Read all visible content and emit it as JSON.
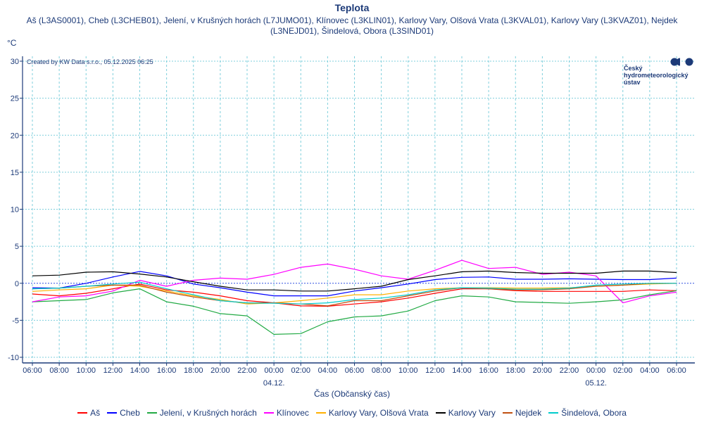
{
  "chart_data": {
    "type": "line",
    "title": "Teplota",
    "subtitle": "Aš (L3AS0001), Cheb (L3CHEB01), Jelení, v Krušných horách (L7JUMO01), Klínovec (L3KLIN01), Karlovy Vary, Olšová Vrata (L3KVAL01), Karlovy Vary (L3KVAZ01), Nejdek (L3NEJD01), Šindelová, Obora (L3SIND01)",
    "ylabel": "°C",
    "xlabel": "Čas (Občanský čas)",
    "credit": "Created by KW Data s.r.o., 05.12.2025 06:25",
    "logo_text": "Český hydrometeorologický ústav",
    "ylim": [
      -10,
      30
    ],
    "yticks": [
      -10,
      -5,
      0,
      5,
      10,
      15,
      20,
      25,
      30
    ],
    "x_hours": [
      0,
      2,
      4,
      6,
      8,
      10,
      12,
      14,
      16,
      18,
      20,
      22,
      24,
      26,
      28,
      30,
      32,
      34,
      36,
      38,
      40,
      42,
      44,
      46,
      48
    ],
    "xtick_labels": [
      "06:00",
      "08:00",
      "10:00",
      "12:00",
      "14:00",
      "16:00",
      "18:00",
      "20:00",
      "22:00",
      "00:00",
      "02:00",
      "04:00",
      "06:00",
      "08:00",
      "10:00",
      "12:00",
      "14:00",
      "16:00",
      "18:00",
      "20:00",
      "22:00",
      "00:00",
      "02:00",
      "04:00",
      "06:00"
    ],
    "date_labels": [
      {
        "hour": 18,
        "label": "04.12."
      },
      {
        "hour": 42,
        "label": "05.12."
      }
    ],
    "grid": true,
    "legend_position": "bottom",
    "series": [
      {
        "name": "Aš",
        "color": "#ff0000",
        "values": [
          -1.45,
          -1.7,
          -1.35,
          -0.75,
          -0.1,
          -0.9,
          -1.2,
          -1.7,
          -2.35,
          -2.65,
          -3.05,
          -3.1,
          -2.8,
          -2.5,
          -2.0,
          -1.35,
          -0.75,
          -0.75,
          -1.0,
          -1.1,
          -1.1,
          -1.1,
          -1.1,
          -0.9,
          -1.0
        ]
      },
      {
        "name": "Cheb",
        "color": "#0000ff",
        "values": [
          -0.6,
          -0.65,
          0,
          0.85,
          1.6,
          1.0,
          -0.1,
          -0.6,
          -1.2,
          -1.7,
          -1.7,
          -1.7,
          -1.05,
          -0.6,
          -0.1,
          0.5,
          0.8,
          0.85,
          0.55,
          0.55,
          0.6,
          0.55,
          0.5,
          0.5,
          0.7
        ]
      },
      {
        "name": "Jelení, v Krušných horách",
        "color": "#22aa44",
        "values": [
          -2.5,
          -2.35,
          -2.2,
          -1.3,
          -0.75,
          -2.5,
          -3.1,
          -4.1,
          -4.4,
          -6.9,
          -6.8,
          -5.2,
          -4.55,
          -4.4,
          -3.75,
          -2.35,
          -1.7,
          -1.85,
          -2.5,
          -2.6,
          -2.7,
          -2.5,
          -2.25,
          -1.55,
          -1.0
        ]
      },
      {
        "name": "Klínovec",
        "color": "#ff00ff",
        "values": [
          -2.5,
          -1.85,
          -1.7,
          -1.05,
          0.4,
          -0.4,
          0.4,
          0.7,
          0.55,
          1.2,
          2.15,
          2.6,
          1.9,
          1.0,
          0.55,
          1.75,
          3.1,
          2.0,
          2.15,
          1.2,
          1.5,
          1.0,
          -2.65,
          -1.7,
          -1.2
        ]
      },
      {
        "name": "Karlovy Vary, Olšová Vrata",
        "color": "#ffb000",
        "values": [
          -1.1,
          -0.9,
          -0.75,
          -0.25,
          -0.4,
          -1.05,
          -1.7,
          -2.2,
          -2.8,
          -2.65,
          -2.35,
          -2.0,
          -1.55,
          -1.55,
          -1.05,
          -0.75,
          -0.6,
          -0.6,
          -0.65,
          -0.65,
          -0.6,
          -0.4,
          -0.25,
          -0.1,
          0
        ]
      },
      {
        "name": "Karlovy Vary",
        "color": "#000000",
        "values": [
          1.0,
          1.1,
          1.5,
          1.55,
          1.25,
          0.85,
          0.2,
          -0.4,
          -0.9,
          -0.9,
          -1.05,
          -1.05,
          -0.75,
          -0.4,
          0.5,
          1.0,
          1.55,
          1.65,
          1.45,
          1.35,
          1.35,
          1.35,
          1.65,
          1.65,
          1.45
        ]
      },
      {
        "name": "Nejdek",
        "color": "#c05010",
        "values": [
          -0.75,
          -0.65,
          -0.4,
          -0.25,
          -0.25,
          -1.2,
          -1.85,
          -2.35,
          -2.65,
          -2.65,
          -2.8,
          -3.05,
          -2.35,
          -2.35,
          -1.7,
          -1.05,
          -0.6,
          -0.75,
          -0.9,
          -0.9,
          -0.75,
          -0.4,
          -0.25,
          0,
          0
        ]
      },
      {
        "name": "Šindelová, Obora",
        "color": "#00cccc",
        "values": [
          -0.75,
          -0.65,
          -0.4,
          -0.1,
          0.15,
          -0.75,
          -1.55,
          -2.35,
          -2.65,
          -2.7,
          -2.8,
          -2.65,
          -2.2,
          -2.0,
          -1.55,
          -0.9,
          -0.6,
          -0.65,
          -0.8,
          -0.8,
          -0.65,
          -0.25,
          -0.1,
          0,
          0
        ]
      }
    ]
  }
}
